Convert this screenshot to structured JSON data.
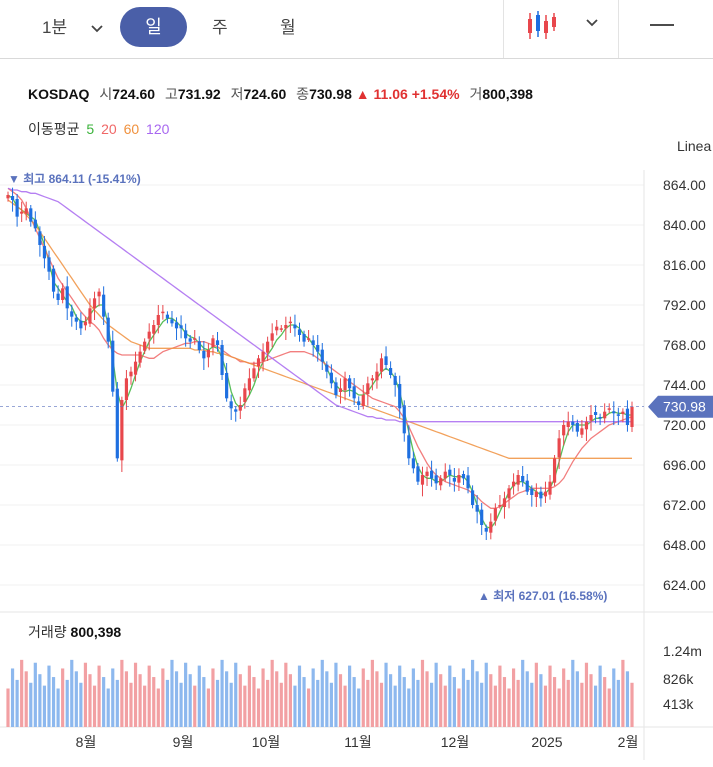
{
  "toolbar": {
    "interval": "1분",
    "tabs": [
      "일",
      "주",
      "월"
    ],
    "active_tab": "일",
    "chart_type_icon": "candlestick-icon",
    "dropdown_icon": "chevron-down-icon",
    "line_tool_icon": "line-tool-icon"
  },
  "quote": {
    "symbol": "KOSDAQ",
    "open_label": "시",
    "open": "724.60",
    "high_label": "고",
    "high": "731.92",
    "low_label": "저",
    "low": "724.60",
    "close_label": "종",
    "close": "730.98",
    "change": "▲ 11.06",
    "change_pct": "+1.54%",
    "volume_label": "거",
    "volume": "800,398"
  },
  "moving_average": {
    "label": "이동평균",
    "periods": [
      "5",
      "20",
      "60",
      "120"
    ],
    "colors": [
      "#3bb33b",
      "#f06767",
      "#f0913e",
      "#a868f0"
    ]
  },
  "scale_label": "Linea",
  "price_tag": "730.98",
  "high_marker": "▼ 최고 864.11 (-15.41%)",
  "low_marker": "▲ 최저 627.01 (16.58%)",
  "volume_panel": {
    "label": "거래량",
    "value": "800,398"
  },
  "colors": {
    "up": "#e8474c",
    "down": "#1e6fe0",
    "tab_active": "#4a5fa8",
    "price_tag": "#5a72bd",
    "vol_up": "#f2a0a3",
    "vol_down": "#8db8ee"
  },
  "chart_data": {
    "type": "candlestick",
    "y_ticks": [
      "864.00",
      "840.00",
      "816.00",
      "792.00",
      "768.00",
      "744.00",
      "720.00",
      "696.00",
      "672.00",
      "648.00",
      "624.00"
    ],
    "ylim": [
      612,
      873
    ],
    "x_ticks": [
      "8월",
      "9월",
      "10월",
      "11월",
      "12월",
      "2025",
      "2월"
    ],
    "volume_ticks": [
      "1.24m",
      "826k",
      "413k"
    ],
    "last_price": 730.98,
    "high": 864.11,
    "low": 627.01,
    "closes": [
      858,
      855,
      845,
      848,
      850,
      842,
      838,
      828,
      820,
      812,
      800,
      795,
      802,
      790,
      785,
      782,
      778,
      782,
      790,
      796,
      800,
      785,
      770,
      740,
      700,
      735,
      748,
      752,
      758,
      764,
      770,
      776,
      780,
      786,
      788,
      784,
      781,
      778,
      778,
      772,
      770,
      772,
      765,
      760,
      765,
      772,
      768,
      750,
      736,
      730,
      728,
      732,
      742,
      748,
      754,
      760,
      764,
      770,
      775,
      779,
      778,
      780,
      782,
      778,
      774,
      770,
      772,
      768,
      764,
      758,
      752,
      745,
      738,
      742,
      748,
      742,
      736,
      732,
      738,
      745,
      748,
      752,
      760,
      756,
      750,
      744,
      730,
      715,
      700,
      694,
      686,
      690,
      692,
      688,
      685,
      688,
      692,
      690,
      686,
      690,
      688,
      682,
      672,
      668,
      660,
      656,
      662,
      670,
      672,
      676,
      682,
      686,
      690,
      686,
      680,
      678,
      680,
      676,
      680,
      686,
      700,
      712,
      720,
      722,
      720,
      716,
      718,
      722,
      726,
      726,
      724,
      728,
      730,
      727,
      726,
      728,
      720,
      731
    ],
    "ma_series": [
      {
        "period": "5",
        "values": [
          858,
          856,
          851,
          849,
          847,
          845,
          843,
          836,
          828,
          818,
          806,
          802,
          798,
          794,
          791,
          785,
          782,
          782,
          786,
          790,
          792,
          792,
          780,
          760,
          740,
          730,
          735,
          742,
          750,
          758,
          764,
          770,
          774,
          778,
          782,
          784,
          784,
          782,
          779,
          775,
          773,
          772,
          769,
          766,
          765,
          767,
          766,
          760,
          752,
          740,
          733,
          730,
          733,
          738,
          744,
          752,
          758,
          762,
          766,
          771,
          774,
          778,
          780,
          780,
          778,
          774,
          772,
          768,
          764,
          760,
          754,
          748,
          744,
          741,
          740,
          741,
          740,
          738,
          738,
          740,
          744,
          748,
          752,
          754,
          752,
          748,
          740,
          728,
          716,
          704,
          695,
          690,
          688,
          688,
          686,
          686,
          688,
          690,
          689,
          689,
          689,
          686,
          680,
          672,
          664,
          659,
          658,
          662,
          668,
          674,
          680,
          684,
          686,
          686,
          684,
          682,
          680,
          678,
          679,
          682,
          688,
          698,
          708,
          716,
          720,
          720,
          720,
          720,
          722,
          724,
          724,
          725,
          727,
          728,
          727,
          727,
          726,
          726
        ]
      },
      {
        "period": "20",
        "values": [
          862,
          860,
          858,
          855,
          850,
          844,
          838,
          832,
          826,
          820,
          814,
          808,
          804,
          800,
          796,
          792,
          788,
          785,
          782,
          780,
          777,
          772,
          768,
          765,
          763,
          762,
          762,
          762,
          762,
          762,
          761,
          760,
          760,
          762,
          764,
          765,
          766,
          767,
          768,
          769,
          769,
          770,
          770,
          770,
          769,
          768,
          767,
          765,
          763,
          761,
          760,
          758,
          758,
          757,
          757,
          757,
          758,
          759,
          760,
          761,
          762,
          763,
          764,
          764,
          764,
          764,
          763,
          762,
          760,
          758,
          756,
          754,
          752,
          750,
          748,
          746,
          744,
          742,
          740,
          738,
          736,
          735,
          734,
          733,
          732,
          731,
          728,
          724,
          719,
          713,
          707,
          702,
          697,
          693,
          690,
          688,
          686,
          685,
          684,
          683,
          682,
          681,
          679,
          677,
          674,
          672,
          670,
          670,
          671,
          673,
          675,
          677,
          679,
          680,
          681,
          682,
          682,
          682,
          682,
          682,
          683,
          685,
          688,
          693,
          698,
          702,
          706,
          709,
          712,
          714,
          716,
          718,
          720,
          721,
          722,
          723,
          724,
          725
        ]
      },
      {
        "period": "60",
        "values": [
          855,
          853,
          851,
          849,
          846,
          843,
          840,
          836,
          832,
          828,
          824,
          820,
          816,
          812,
          808,
          804,
          800,
          796,
          792,
          789,
          786,
          783,
          780,
          778,
          776,
          774,
          772,
          770,
          769,
          768,
          767,
          766,
          766,
          766,
          766,
          766,
          766,
          766,
          766,
          766,
          766,
          765,
          765,
          765,
          764,
          764,
          763,
          763,
          762,
          761,
          760,
          759,
          758,
          757,
          756,
          755,
          754,
          753,
          752,
          751,
          750,
          749,
          748,
          747,
          746,
          745,
          744,
          743,
          742,
          741,
          740,
          739,
          738,
          737,
          736,
          735,
          734,
          733,
          732,
          731,
          730,
          729,
          728,
          727,
          726,
          725,
          724,
          723,
          722,
          721,
          720,
          719,
          718,
          717,
          716,
          715,
          714,
          713,
          712,
          711,
          710,
          709,
          708,
          707,
          706,
          705,
          704,
          703,
          702,
          701,
          700,
          700,
          700,
          700,
          700,
          700,
          700,
          700,
          700,
          700,
          700,
          700,
          700,
          700,
          700,
          700,
          700,
          700,
          700,
          700,
          700,
          700,
          700,
          700,
          700,
          700,
          700,
          700
        ]
      },
      {
        "period": "120",
        "values": [
          862,
          861,
          861,
          860,
          860,
          859,
          859,
          858,
          857,
          856,
          855,
          854,
          852,
          850,
          848,
          846,
          844,
          842,
          840,
          838,
          836,
          834,
          832,
          830,
          828,
          826,
          824,
          822,
          820,
          818,
          816,
          814,
          812,
          810,
          808,
          806,
          804,
          802,
          800,
          798,
          796,
          794,
          792,
          790,
          788,
          786,
          784,
          782,
          780,
          778,
          776,
          774,
          772,
          770,
          768,
          766,
          764,
          762,
          760,
          758,
          756,
          754,
          752,
          750,
          748,
          746,
          744,
          742,
          740,
          738,
          736,
          734,
          732,
          731,
          730,
          729,
          728,
          727,
          726,
          725,
          725,
          724,
          724,
          723,
          723,
          723,
          722,
          722,
          722,
          722,
          722,
          722,
          722,
          722,
          722,
          722,
          722,
          722,
          722,
          722,
          722,
          722,
          722,
          722,
          722,
          722,
          722,
          722,
          722,
          722,
          722,
          722,
          722,
          722,
          722,
          722,
          722,
          722,
          722,
          722,
          722,
          722,
          722,
          722,
          722,
          722,
          722,
          722,
          722,
          722,
          722,
          722,
          722,
          722,
          722,
          722,
          722,
          722
        ]
      }
    ]
  }
}
